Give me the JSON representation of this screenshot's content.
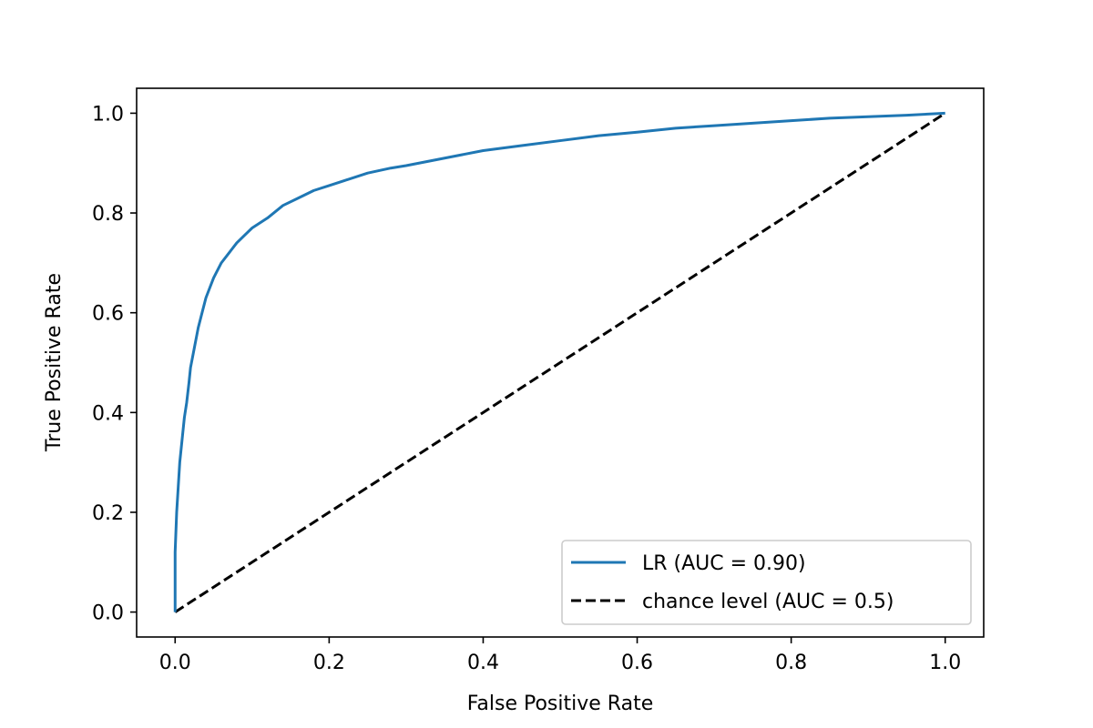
{
  "chart_data": {
    "type": "line",
    "title": "",
    "xlabel": "False Positive Rate",
    "ylabel": "True Positive Rate",
    "xlim": [
      -0.05,
      1.05
    ],
    "ylim": [
      -0.05,
      1.05
    ],
    "x_ticks": [
      0.0,
      0.2,
      0.4,
      0.6,
      0.8,
      1.0
    ],
    "x_tick_labels": [
      "0.0",
      "0.2",
      "0.4",
      "0.6",
      "0.8",
      "1.0"
    ],
    "y_ticks": [
      0.0,
      0.2,
      0.4,
      0.6,
      0.8,
      1.0
    ],
    "y_tick_labels": [
      "0.0",
      "0.2",
      "0.4",
      "0.6",
      "0.8",
      "1.0"
    ],
    "grid": false,
    "legend_position": "lower-right",
    "series": [
      {
        "name": "LR (AUC = 0.90)",
        "color": "#1f77b4",
        "style": "solid",
        "x": [
          0.0,
          0.0,
          0.002,
          0.004,
          0.006,
          0.008,
          0.01,
          0.012,
          0.015,
          0.018,
          0.02,
          0.025,
          0.03,
          0.035,
          0.04,
          0.045,
          0.05,
          0.06,
          0.07,
          0.08,
          0.09,
          0.1,
          0.12,
          0.14,
          0.16,
          0.18,
          0.2,
          0.22,
          0.25,
          0.28,
          0.3,
          0.35,
          0.4,
          0.45,
          0.5,
          0.55,
          0.6,
          0.65,
          0.7,
          0.75,
          0.8,
          0.85,
          0.9,
          0.95,
          1.0
        ],
        "y": [
          0.0,
          0.12,
          0.2,
          0.25,
          0.3,
          0.33,
          0.36,
          0.39,
          0.42,
          0.46,
          0.49,
          0.53,
          0.57,
          0.6,
          0.63,
          0.65,
          0.67,
          0.7,
          0.72,
          0.74,
          0.755,
          0.77,
          0.79,
          0.815,
          0.83,
          0.845,
          0.855,
          0.865,
          0.88,
          0.89,
          0.895,
          0.91,
          0.925,
          0.935,
          0.945,
          0.955,
          0.962,
          0.97,
          0.975,
          0.98,
          0.985,
          0.99,
          0.993,
          0.996,
          1.0
        ]
      },
      {
        "name": "chance level (AUC = 0.5)",
        "color": "#000000",
        "style": "dashed",
        "x": [
          0.0,
          1.0
        ],
        "y": [
          0.0,
          1.0
        ]
      }
    ]
  }
}
